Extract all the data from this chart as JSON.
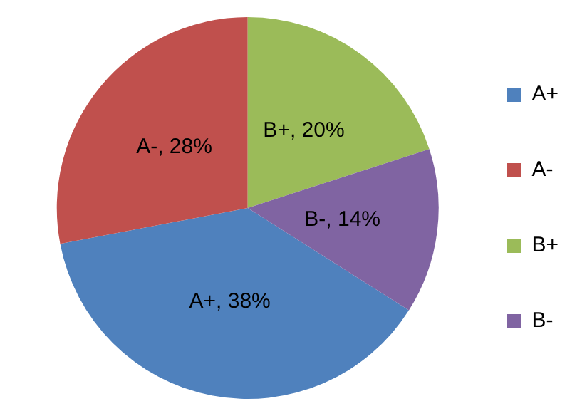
{
  "chart_data": {
    "type": "pie",
    "categories": [
      "A+",
      "A-",
      "B+",
      "B-"
    ],
    "values": [
      38,
      28,
      20,
      14
    ],
    "colors": [
      "#4f81bd",
      "#c0504d",
      "#9bbb59",
      "#8064a2"
    ],
    "value_labels": [
      "A+, 38%",
      "A-, 28%",
      "B+, 20%",
      "B-, 14%"
    ],
    "legend": "right"
  }
}
